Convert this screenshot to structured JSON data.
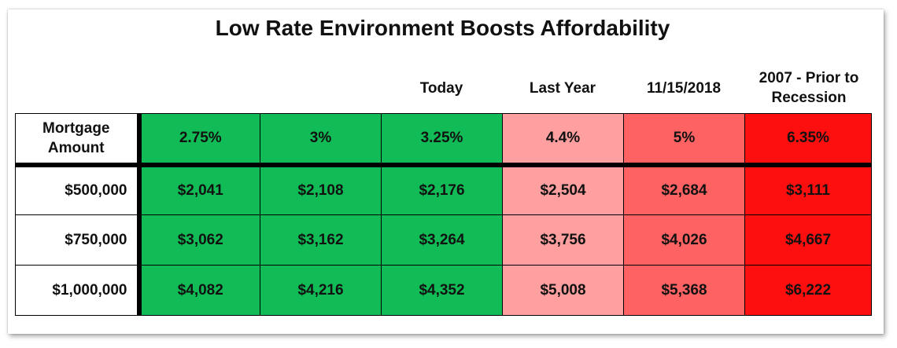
{
  "chart_data": {
    "type": "table",
    "title": "Low Rate Environment Boosts Affordability",
    "column_headers": [
      "",
      "",
      "Today",
      "Last Year",
      "11/15/2018",
      "2007 - Prior to Recession"
    ],
    "corner_label": "Mortgage Amount",
    "rates": [
      "2.75%",
      "3%",
      "3.25%",
      "4.4%",
      "5%",
      "6.35%"
    ],
    "rate_colors": [
      "#11bb55",
      "#11bb55",
      "#11bb55",
      "#ff9f9f",
      "#ff6262",
      "#fd0f0f"
    ],
    "rows": [
      {
        "amount": "$500,000",
        "payments": [
          "$2,041",
          "$2,108",
          "$2,176",
          "$2,504",
          "$2,684",
          "$3,111"
        ]
      },
      {
        "amount": "$750,000",
        "payments": [
          "$3,062",
          "$3,162",
          "$3,264",
          "$3,756",
          "$4,026",
          "$4,667"
        ]
      },
      {
        "amount": "$1,000,000",
        "payments": [
          "$4,082",
          "$4,216",
          "$4,352",
          "$5,008",
          "$5,368",
          "$6,222"
        ]
      }
    ]
  }
}
